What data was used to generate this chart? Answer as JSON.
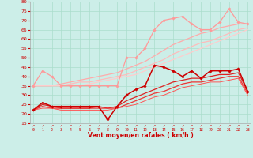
{
  "xlabel": "Vent moyen/en rafales ( km/h )",
  "xlim": [
    -0.3,
    23.3
  ],
  "ylim": [
    15,
    80
  ],
  "yticks": [
    15,
    20,
    25,
    30,
    35,
    40,
    45,
    50,
    55,
    60,
    65,
    70,
    75,
    80
  ],
  "xticks": [
    0,
    1,
    2,
    3,
    4,
    5,
    6,
    7,
    8,
    9,
    10,
    11,
    12,
    13,
    14,
    15,
    16,
    17,
    18,
    19,
    20,
    21,
    22,
    23
  ],
  "bg_color": "#cceee8",
  "grid_color": "#aaddcc",
  "series": [
    {
      "x": [
        0,
        1,
        2,
        3,
        4,
        5,
        6,
        7,
        8,
        9,
        10,
        11,
        12,
        13,
        14,
        15,
        16,
        17,
        18,
        19,
        20,
        21,
        22,
        23
      ],
      "y": [
        35,
        43,
        40,
        35,
        35,
        35,
        35,
        35,
        35,
        35,
        50,
        50,
        55,
        65,
        70,
        71,
        72,
        68,
        65,
        65,
        69,
        76,
        69,
        68
      ],
      "color": "#ff9999",
      "lw": 0.9,
      "marker": "D",
      "ms": 1.8
    },
    {
      "x": [
        0,
        1,
        2,
        3,
        4,
        5,
        6,
        7,
        8,
        9,
        10,
        11,
        12,
        13,
        14,
        15,
        16,
        17,
        18,
        19,
        20,
        21,
        22,
        23
      ],
      "y": [
        35,
        35,
        35,
        36,
        37,
        38,
        39,
        40,
        41,
        42,
        44,
        46,
        48,
        51,
        54,
        57,
        59,
        61,
        63,
        64,
        66,
        67,
        68,
        68
      ],
      "color": "#ffaaaa",
      "lw": 0.9,
      "marker": null,
      "ms": 0
    },
    {
      "x": [
        0,
        1,
        2,
        3,
        4,
        5,
        6,
        7,
        8,
        9,
        10,
        11,
        12,
        13,
        14,
        15,
        16,
        17,
        18,
        19,
        20,
        21,
        22,
        23
      ],
      "y": [
        35,
        35,
        35,
        35,
        36,
        37,
        37,
        38,
        39,
        40,
        41,
        43,
        45,
        47,
        49,
        52,
        54,
        56,
        58,
        59,
        61,
        63,
        65,
        66
      ],
      "color": "#ffbbbb",
      "lw": 0.9,
      "marker": null,
      "ms": 0
    },
    {
      "x": [
        0,
        1,
        2,
        3,
        4,
        5,
        6,
        7,
        8,
        9,
        10,
        11,
        12,
        13,
        14,
        15,
        16,
        17,
        18,
        19,
        20,
        21,
        22,
        23
      ],
      "y": [
        35,
        35,
        35,
        35,
        35,
        35,
        36,
        37,
        38,
        39,
        40,
        41,
        43,
        45,
        47,
        49,
        51,
        53,
        55,
        57,
        59,
        61,
        63,
        65
      ],
      "color": "#ffcccc",
      "lw": 0.9,
      "marker": null,
      "ms": 0
    },
    {
      "x": [
        0,
        1,
        2,
        3,
        4,
        5,
        6,
        7,
        8,
        9,
        10,
        11,
        12,
        13,
        14,
        15,
        16,
        17,
        18,
        19,
        20,
        21,
        22,
        23
      ],
      "y": [
        22,
        26,
        24,
        24,
        24,
        24,
        24,
        24,
        17,
        24,
        30,
        33,
        35,
        46,
        45,
        43,
        40,
        43,
        39,
        43,
        43,
        43,
        44,
        32
      ],
      "color": "#cc0000",
      "lw": 1.1,
      "marker": "D",
      "ms": 1.8
    },
    {
      "x": [
        0,
        1,
        2,
        3,
        4,
        5,
        6,
        7,
        8,
        9,
        10,
        11,
        12,
        13,
        14,
        15,
        16,
        17,
        18,
        19,
        20,
        21,
        22,
        23
      ],
      "y": [
        22,
        25,
        24,
        23,
        23,
        23,
        23,
        24,
        23,
        24,
        27,
        29,
        31,
        33,
        35,
        37,
        38,
        39,
        39,
        40,
        41,
        41,
        42,
        32
      ],
      "color": "#dd2222",
      "lw": 0.9,
      "marker": null,
      "ms": 0
    },
    {
      "x": [
        0,
        1,
        2,
        3,
        4,
        5,
        6,
        7,
        8,
        9,
        10,
        11,
        12,
        13,
        14,
        15,
        16,
        17,
        18,
        19,
        20,
        21,
        22,
        23
      ],
      "y": [
        22,
        24,
        23,
        23,
        23,
        23,
        23,
        23,
        23,
        23,
        25,
        27,
        29,
        31,
        32,
        34,
        36,
        37,
        37,
        38,
        39,
        40,
        40,
        31
      ],
      "color": "#ee3333",
      "lw": 0.9,
      "marker": null,
      "ms": 0
    },
    {
      "x": [
        0,
        1,
        2,
        3,
        4,
        5,
        6,
        7,
        8,
        9,
        10,
        11,
        12,
        13,
        14,
        15,
        16,
        17,
        18,
        19,
        20,
        21,
        22,
        23
      ],
      "y": [
        22,
        23,
        23,
        22,
        22,
        22,
        22,
        22,
        22,
        23,
        24,
        25,
        27,
        29,
        30,
        32,
        34,
        35,
        36,
        37,
        37,
        38,
        39,
        30
      ],
      "color": "#ff5555",
      "lw": 0.7,
      "marker": null,
      "ms": 0
    }
  ]
}
